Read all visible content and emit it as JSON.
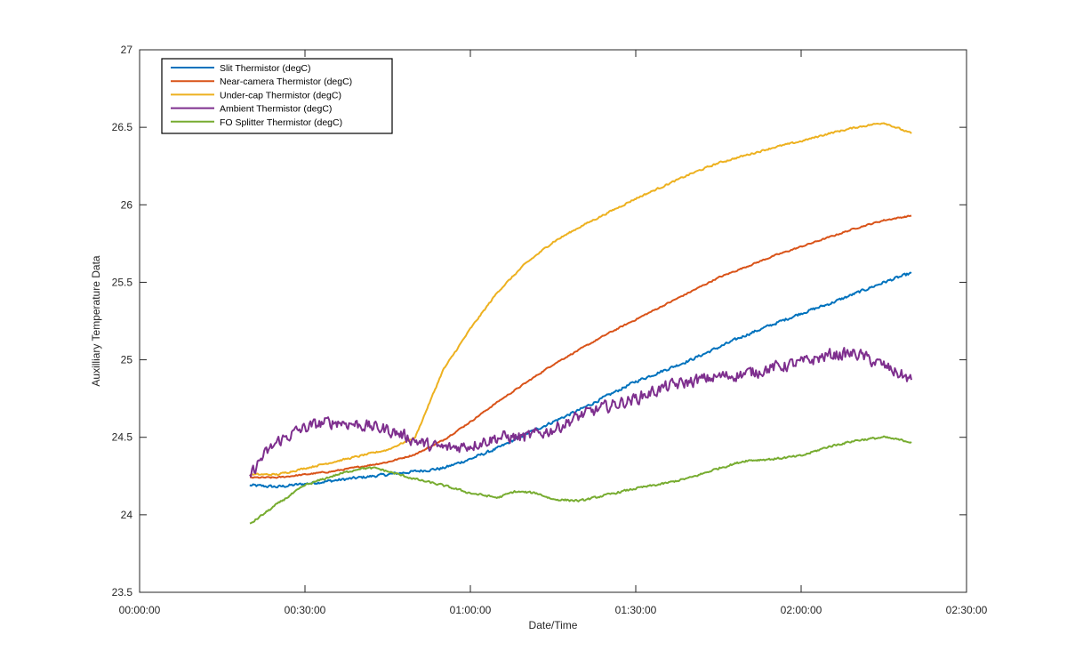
{
  "chart_data": {
    "type": "line",
    "title": "",
    "xlabel": "Date/Time",
    "ylabel": "Auxilliary Temperature Data",
    "xlim": [
      "00:00:00",
      "02:30:00"
    ],
    "ylim": [
      23.5,
      27
    ],
    "x_ticks": [
      "00:00:00",
      "00:30:00",
      "01:00:00",
      "01:30:00",
      "02:00:00",
      "02:30:00"
    ],
    "y_ticks": [
      "23.5",
      "24",
      "24.5",
      "25",
      "25.5",
      "26",
      "26.5",
      "27"
    ],
    "grid": false,
    "legend_position": "top-left",
    "series": [
      {
        "name": "Slit Thermistor (degC)",
        "color": "#0072BD",
        "noise": 0.008,
        "points": [
          [
            "00:20:00",
            24.19
          ],
          [
            "00:25:00",
            24.18
          ],
          [
            "00:30:00",
            24.2
          ],
          [
            "00:35:00",
            24.22
          ],
          [
            "00:40:00",
            24.24
          ],
          [
            "00:45:00",
            24.26
          ],
          [
            "00:50:00",
            24.28
          ],
          [
            "00:55:00",
            24.3
          ],
          [
            "01:00:00",
            24.36
          ],
          [
            "01:05:00",
            24.43
          ],
          [
            "01:10:00",
            24.52
          ],
          [
            "01:15:00",
            24.6
          ],
          [
            "01:20:00",
            24.68
          ],
          [
            "01:25:00",
            24.77
          ],
          [
            "01:30:00",
            24.86
          ],
          [
            "01:35:00",
            24.93
          ],
          [
            "01:40:00",
            25.0
          ],
          [
            "01:45:00",
            25.08
          ],
          [
            "01:50:00",
            25.16
          ],
          [
            "01:55:00",
            25.23
          ],
          [
            "02:00:00",
            25.3
          ],
          [
            "02:05:00",
            25.36
          ],
          [
            "02:10:00",
            25.43
          ],
          [
            "02:15:00",
            25.5
          ],
          [
            "02:20:00",
            25.56
          ]
        ]
      },
      {
        "name": "Near-camera Thermistor (degC)",
        "color": "#D95319",
        "noise": 0.004,
        "points": [
          [
            "00:20:00",
            24.24
          ],
          [
            "00:25:00",
            24.24
          ],
          [
            "00:30:00",
            24.26
          ],
          [
            "00:35:00",
            24.28
          ],
          [
            "00:40:00",
            24.31
          ],
          [
            "00:45:00",
            24.34
          ],
          [
            "00:50:00",
            24.39
          ],
          [
            "00:55:00",
            24.48
          ],
          [
            "01:00:00",
            24.6
          ],
          [
            "01:05:00",
            24.73
          ],
          [
            "01:10:00",
            24.85
          ],
          [
            "01:15:00",
            24.97
          ],
          [
            "01:20:00",
            25.07
          ],
          [
            "01:25:00",
            25.17
          ],
          [
            "01:30:00",
            25.26
          ],
          [
            "01:35:00",
            25.35
          ],
          [
            "01:40:00",
            25.44
          ],
          [
            "01:45:00",
            25.53
          ],
          [
            "01:50:00",
            25.6
          ],
          [
            "01:55:00",
            25.67
          ],
          [
            "02:00:00",
            25.73
          ],
          [
            "02:05:00",
            25.79
          ],
          [
            "02:10:00",
            25.85
          ],
          [
            "02:15:00",
            25.9
          ],
          [
            "02:20:00",
            25.93
          ]
        ]
      },
      {
        "name": "Under-cap Thermistor (degC)",
        "color": "#EDB120",
        "noise": 0.005,
        "points": [
          [
            "00:20:00",
            24.26
          ],
          [
            "00:25:00",
            24.26
          ],
          [
            "00:30:00",
            24.3
          ],
          [
            "00:35:00",
            24.34
          ],
          [
            "00:40:00",
            24.38
          ],
          [
            "00:45:00",
            24.42
          ],
          [
            "00:50:00",
            24.5
          ],
          [
            "00:55:00",
            24.93
          ],
          [
            "01:00:00",
            25.2
          ],
          [
            "01:05:00",
            25.44
          ],
          [
            "01:10:00",
            25.62
          ],
          [
            "01:15:00",
            25.76
          ],
          [
            "01:20:00",
            25.86
          ],
          [
            "01:25:00",
            25.95
          ],
          [
            "01:30:00",
            26.04
          ],
          [
            "01:35:00",
            26.12
          ],
          [
            "01:40:00",
            26.2
          ],
          [
            "01:45:00",
            26.27
          ],
          [
            "01:50:00",
            26.32
          ],
          [
            "01:55:00",
            26.37
          ],
          [
            "02:00:00",
            26.41
          ],
          [
            "02:05:00",
            26.46
          ],
          [
            "02:10:00",
            26.5
          ],
          [
            "02:15:00",
            26.53
          ],
          [
            "02:20:00",
            26.46
          ]
        ]
      },
      {
        "name": "Ambient Thermistor (degC)",
        "color": "#7E2F8E",
        "noise": 0.035,
        "points": [
          [
            "00:20:00",
            24.25
          ],
          [
            "00:22:00",
            24.36
          ],
          [
            "00:25:00",
            24.47
          ],
          [
            "00:28:00",
            24.53
          ],
          [
            "00:30:00",
            24.56
          ],
          [
            "00:33:00",
            24.59
          ],
          [
            "00:36:00",
            24.6
          ],
          [
            "00:40:00",
            24.58
          ],
          [
            "00:45:00",
            24.55
          ],
          [
            "00:48:00",
            24.51
          ],
          [
            "00:50:00",
            24.48
          ],
          [
            "00:53:00",
            24.44
          ],
          [
            "00:56:00",
            24.43
          ],
          [
            "01:00:00",
            24.45
          ],
          [
            "01:05:00",
            24.5
          ],
          [
            "01:10:00",
            24.5
          ],
          [
            "01:15:00",
            24.55
          ],
          [
            "01:20:00",
            24.64
          ],
          [
            "01:25:00",
            24.7
          ],
          [
            "01:30:00",
            24.75
          ],
          [
            "01:35:00",
            24.82
          ],
          [
            "01:40:00",
            24.86
          ],
          [
            "01:45:00",
            24.89
          ],
          [
            "01:50:00",
            24.91
          ],
          [
            "01:55:00",
            24.95
          ],
          [
            "02:00:00",
            24.98
          ],
          [
            "02:05:00",
            25.03
          ],
          [
            "02:10:00",
            25.04
          ],
          [
            "02:15:00",
            24.96
          ],
          [
            "02:20:00",
            24.87
          ]
        ]
      },
      {
        "name": "FO Splitter Thermistor (degC)",
        "color": "#77AC30",
        "noise": 0.006,
        "points": [
          [
            "00:20:00",
            23.94
          ],
          [
            "00:25:00",
            24.07
          ],
          [
            "00:30:00",
            24.19
          ],
          [
            "00:35:00",
            24.25
          ],
          [
            "00:40:00",
            24.3
          ],
          [
            "00:43:00",
            24.3
          ],
          [
            "00:46:00",
            24.27
          ],
          [
            "00:50:00",
            24.23
          ],
          [
            "00:55:00",
            24.19
          ],
          [
            "01:00:00",
            24.14
          ],
          [
            "01:05:00",
            24.11
          ],
          [
            "01:08:00",
            24.15
          ],
          [
            "01:12:00",
            24.14
          ],
          [
            "01:15:00",
            24.1
          ],
          [
            "01:20:00",
            24.09
          ],
          [
            "01:25:00",
            24.13
          ],
          [
            "01:30:00",
            24.17
          ],
          [
            "01:35:00",
            24.2
          ],
          [
            "01:40:00",
            24.24
          ],
          [
            "01:45:00",
            24.3
          ],
          [
            "01:50:00",
            24.35
          ],
          [
            "01:55:00",
            24.36
          ],
          [
            "02:00:00",
            24.38
          ],
          [
            "02:05:00",
            24.44
          ],
          [
            "02:10:00",
            24.48
          ],
          [
            "02:15:00",
            24.5
          ],
          [
            "02:20:00",
            24.47
          ]
        ]
      }
    ]
  }
}
